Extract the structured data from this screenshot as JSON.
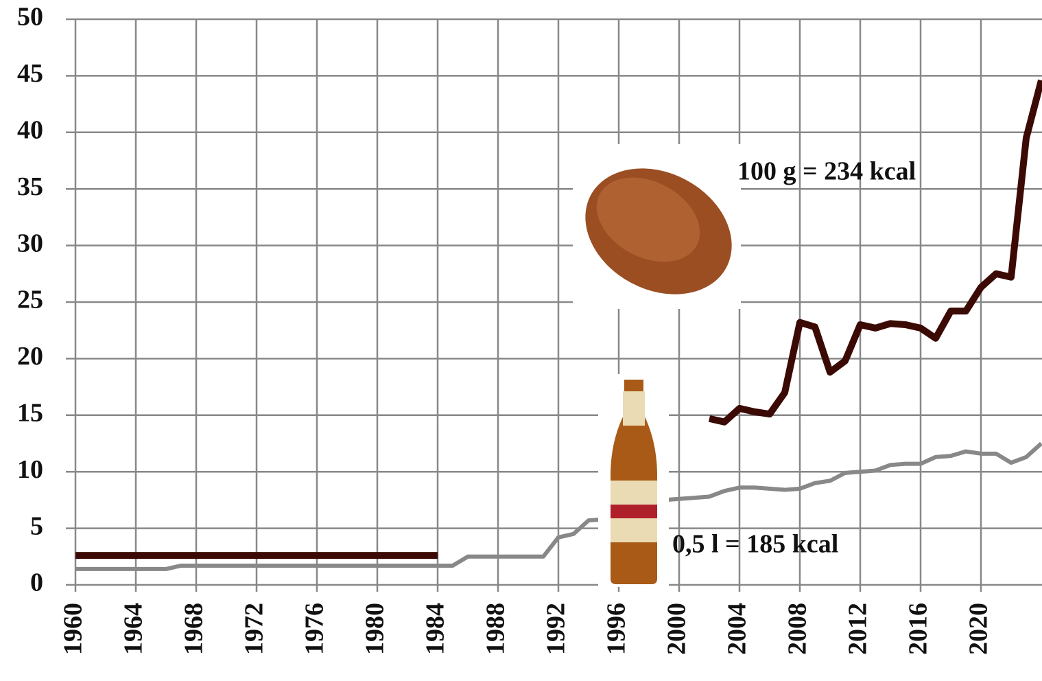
{
  "chart_data": {
    "type": "line",
    "annotations": [
      "100 g = 234 kcal",
      "0,5 l = 185 kcal"
    ],
    "x": [
      1960,
      1961,
      1962,
      1963,
      1964,
      1965,
      1966,
      1967,
      1968,
      1969,
      1970,
      1971,
      1972,
      1973,
      1974,
      1975,
      1976,
      1977,
      1978,
      1979,
      1980,
      1981,
      1982,
      1983,
      1984,
      1985,
      1986,
      1987,
      1988,
      1989,
      1990,
      1991,
      1992,
      1993,
      1994,
      1995,
      1996,
      1997,
      1998,
      1999,
      2000,
      2001,
      2002,
      2003,
      2004,
      2005,
      2006,
      2007,
      2008,
      2009,
      2010,
      2011,
      2012,
      2013,
      2014,
      2015,
      2016,
      2017,
      2018,
      2019,
      2020,
      2021,
      2022,
      2023,
      2024
    ],
    "series": [
      {
        "color": "#888888",
        "values": [
          1.4,
          1.4,
          1.4,
          1.4,
          1.4,
          1.4,
          1.4,
          1.7,
          1.7,
          1.7,
          1.7,
          1.7,
          1.7,
          1.7,
          1.7,
          1.7,
          1.7,
          1.7,
          1.7,
          1.7,
          1.7,
          1.7,
          1.7,
          1.7,
          1.7,
          1.7,
          2.5,
          2.5,
          2.5,
          2.5,
          2.5,
          2.5,
          4.2,
          4.5,
          5.7,
          5.8,
          6.1,
          6.6,
          7.3,
          7.5,
          7.6,
          7.7,
          7.8,
          8.3,
          8.6,
          8.6,
          8.5,
          8.4,
          8.5,
          9.0,
          9.2,
          9.9,
          10.0,
          10.1,
          10.6,
          10.7,
          10.7,
          11.3,
          11.4,
          11.8,
          11.6,
          11.6,
          10.8,
          11.3,
          12.5
        ]
      },
      {
        "color": "#3b0a05",
        "values": [
          2.6,
          2.6,
          2.6,
          2.6,
          2.6,
          2.6,
          2.6,
          2.6,
          2.6,
          2.6,
          2.6,
          2.6,
          2.6,
          2.6,
          2.6,
          2.6,
          2.6,
          2.6,
          2.6,
          2.6,
          2.6,
          2.6,
          2.6,
          2.6,
          2.6,
          null,
          null,
          null,
          null,
          null,
          null,
          null,
          null,
          null,
          null,
          null,
          null,
          null,
          null,
          null,
          null,
          null,
          14.7,
          14.4,
          15.6,
          15.3,
          15.1,
          17.0,
          23.2,
          22.8,
          18.8,
          19.8,
          23.0,
          22.7,
          23.1,
          23.0,
          22.7,
          21.8,
          24.2,
          24.2,
          26.3,
          27.5,
          27.2,
          39.5,
          44.6
        ]
      }
    ],
    "xlim": [
      1960,
      2024
    ],
    "xticks": [
      1960,
      1964,
      1968,
      1972,
      1976,
      1980,
      1984,
      1988,
      1992,
      1996,
      2000,
      2004,
      2008,
      2012,
      2016,
      2020
    ],
    "ylim": [
      0,
      50
    ],
    "yticks": [
      0,
      5,
      10,
      15,
      20,
      25,
      30,
      35,
      40,
      45,
      50
    ],
    "grid": true
  }
}
